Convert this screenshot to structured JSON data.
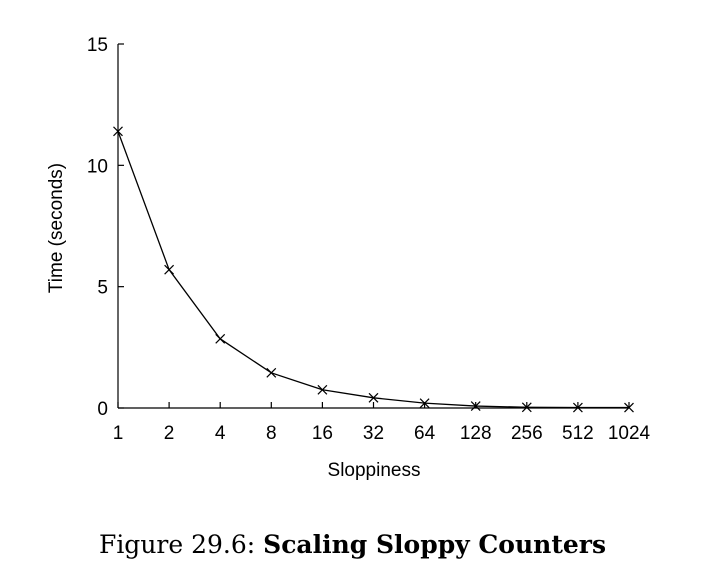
{
  "chart_data": {
    "type": "line",
    "xlabel": "Sloppiness",
    "ylabel": "Time (seconds)",
    "x_scale": "log2",
    "categories": [
      "1",
      "2",
      "4",
      "8",
      "16",
      "32",
      "64",
      "128",
      "256",
      "512",
      "1024"
    ],
    "y_ticks": [
      "0",
      "5",
      "10",
      "15"
    ],
    "ylim": [
      0,
      15
    ],
    "series": [
      {
        "values": [
          11.4,
          5.7,
          2.85,
          1.45,
          0.75,
          0.42,
          0.2,
          0.08,
          0.03,
          0.02,
          0.02
        ]
      }
    ],
    "marker": "x",
    "line_color": "#000000"
  },
  "caption": {
    "prefix": "Figure 29.6:",
    "title": "Scaling Sloppy Counters"
  }
}
